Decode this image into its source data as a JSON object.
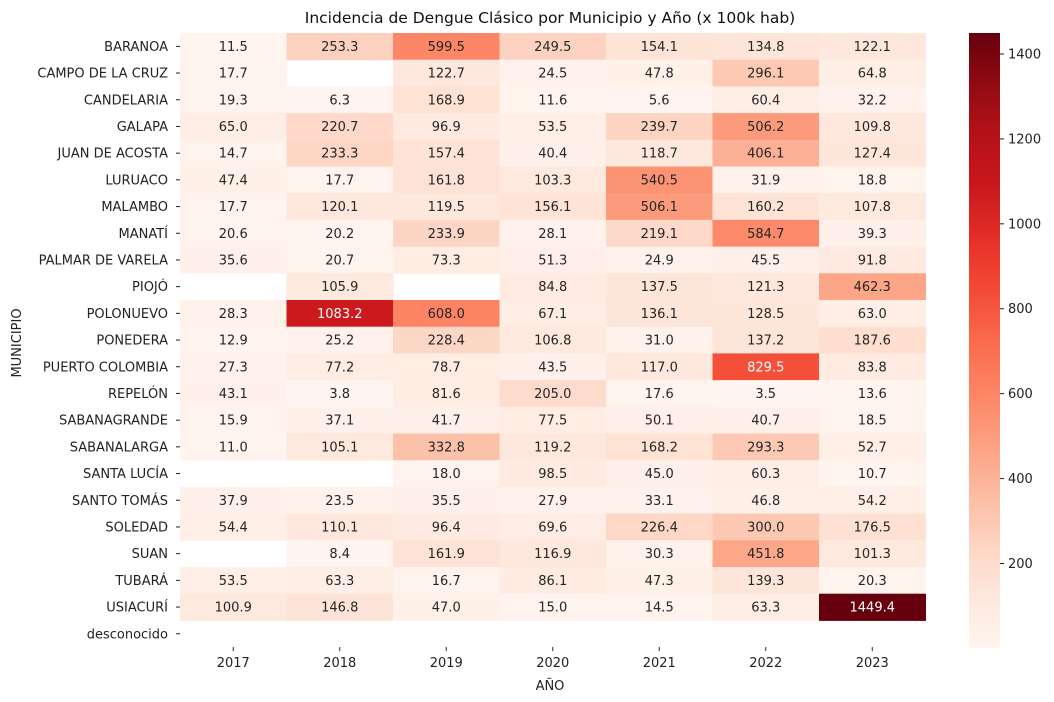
{
  "chart_data": {
    "type": "heatmap",
    "title": "Incidencia de Dengue Clásico por Municipio y Año (x 100k hab)",
    "xlabel": "AÑO",
    "ylabel": "MUNICIPIO",
    "colormap": "Reds",
    "colors": {
      "low": "#fff5f0",
      "high": "#67000d",
      "text_dark": "#262626",
      "text_light": "#ffffff"
    },
    "color_range": [
      1,
      1449.4
    ],
    "colorbar_ticks": [
      200,
      400,
      600,
      800,
      1000,
      1200,
      1400
    ],
    "x": [
      "2017",
      "2018",
      "2019",
      "2020",
      "2021",
      "2022",
      "2023"
    ],
    "y": [
      "BARANOA",
      "CAMPO DE LA CRUZ",
      "CANDELARIA",
      "GALAPA",
      "JUAN DE ACOSTA",
      "LURUACO",
      "MALAMBO",
      "MANATÍ",
      "PALMAR DE VARELA",
      "PIOJÓ",
      "POLONUEVO",
      "PONEDERA",
      "PUERTO COLOMBIA",
      "REPELÓN",
      "SABANAGRANDE",
      "SABANALARGA",
      "SANTA LUCÍA",
      "SANTO TOMÁS",
      "SOLEDAD",
      "SUAN",
      "TUBARÁ",
      "USIACURÍ",
      "desconocido"
    ],
    "values": [
      [
        11.5,
        253.3,
        599.5,
        249.5,
        154.1,
        134.8,
        122.1
      ],
      [
        17.7,
        null,
        122.7,
        24.5,
        47.8,
        296.1,
        64.8
      ],
      [
        19.3,
        6.3,
        168.9,
        11.6,
        5.6,
        60.4,
        32.2
      ],
      [
        65.0,
        220.7,
        96.9,
        53.5,
        239.7,
        506.2,
        109.8
      ],
      [
        14.7,
        233.3,
        157.4,
        40.4,
        118.7,
        406.1,
        127.4
      ],
      [
        47.4,
        17.7,
        161.8,
        103.3,
        540.5,
        31.9,
        18.8
      ],
      [
        17.7,
        120.1,
        119.5,
        156.1,
        506.1,
        160.2,
        107.8
      ],
      [
        20.6,
        20.2,
        233.9,
        28.1,
        219.1,
        584.7,
        39.3
      ],
      [
        35.6,
        20.7,
        73.3,
        51.3,
        24.9,
        45.5,
        91.8
      ],
      [
        null,
        105.9,
        null,
        84.8,
        137.5,
        121.3,
        462.3
      ],
      [
        28.3,
        1083.2,
        608.0,
        67.1,
        136.1,
        128.5,
        63.0
      ],
      [
        12.9,
        25.2,
        228.4,
        106.8,
        31.0,
        137.2,
        187.6
      ],
      [
        27.3,
        77.2,
        78.7,
        43.5,
        117.0,
        829.5,
        83.8
      ],
      [
        43.1,
        3.8,
        81.6,
        205.0,
        17.6,
        3.5,
        13.6
      ],
      [
        15.9,
        37.1,
        41.7,
        77.5,
        50.1,
        40.7,
        18.5
      ],
      [
        11.0,
        105.1,
        332.8,
        119.2,
        168.2,
        293.3,
        52.7
      ],
      [
        null,
        null,
        18.0,
        98.5,
        45.0,
        60.3,
        10.7
      ],
      [
        37.9,
        23.5,
        35.5,
        27.9,
        33.1,
        46.8,
        54.2
      ],
      [
        54.4,
        110.1,
        96.4,
        69.6,
        226.4,
        300.0,
        176.5
      ],
      [
        null,
        8.4,
        161.9,
        116.9,
        30.3,
        451.8,
        101.3
      ],
      [
        53.5,
        63.3,
        16.7,
        86.1,
        47.3,
        139.3,
        20.3
      ],
      [
        100.9,
        146.8,
        47.0,
        15.0,
        14.5,
        63.3,
        1449.4
      ],
      [
        null,
        null,
        null,
        null,
        null,
        null,
        null
      ]
    ],
    "value_format": "one decimal",
    "colorbar": "right"
  }
}
